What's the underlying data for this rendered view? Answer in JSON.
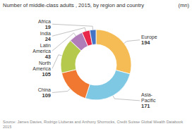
{
  "chart_data": {
    "type": "donut",
    "title": "Number of middle-class adults , 2015, by region and country",
    "subtitle": "(mn)",
    "annotations": [
      "Source: James Davies, Rodrigo Lluberas and Anthony Shorrocks, Credit Suisse Global Wealth Databook 2015"
    ],
    "categories": [
      "Europe",
      "Asia-Pacific",
      "China",
      "North America",
      "Latin America",
      "India",
      "Africa"
    ],
    "values": [
      194,
      171,
      109,
      105,
      43,
      24,
      19
    ],
    "colors": [
      "#f5bc55",
      "#7ec8e3",
      "#f07830",
      "#b5c94c",
      "#b07db8",
      "#e8274b",
      "#4472c4"
    ],
    "data_labels": true
  }
}
